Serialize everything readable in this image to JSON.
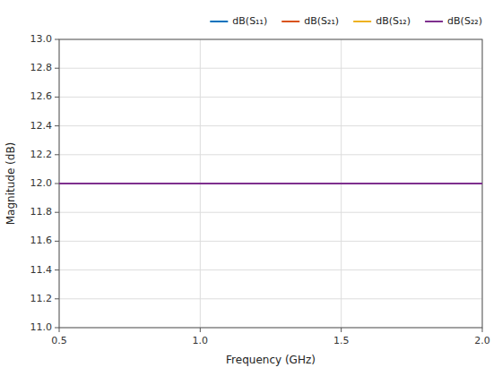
{
  "chart_data": {
    "type": "line",
    "xlabel": "Frequency (GHz)",
    "ylabel": "Magnitude (dB)",
    "x": [
      0.5,
      2.0
    ],
    "series": [
      {
        "name": "dB(S₁₁)",
        "color": "#0072BD",
        "values": [
          12.0,
          12.0
        ]
      },
      {
        "name": "dB(S₂₁)",
        "color": "#D95319",
        "values": [
          12.0,
          12.0
        ]
      },
      {
        "name": "dB(S₁₂)",
        "color": "#EDB120",
        "values": [
          12.0,
          12.0
        ]
      },
      {
        "name": "dB(S₂₂)",
        "color": "#7E2F8E",
        "values": [
          12.0,
          12.0
        ]
      }
    ],
    "xlim": [
      0.5,
      2.0
    ],
    "ylim": [
      11.0,
      13.0
    ],
    "xticks": [
      0.5,
      {
        "value": 1.0,
        "label": "1.0"
      },
      1.5,
      {
        "value": 2.0,
        "label": "2.0"
      }
    ],
    "yticks": [
      {
        "value": 11.0,
        "label": "11.0"
      },
      11.2,
      11.4,
      11.6,
      11.8,
      {
        "value": 12.0,
        "label": "12.0"
      },
      12.2,
      12.4,
      12.6,
      12.8,
      {
        "value": 13.0,
        "label": "13.0"
      }
    ],
    "grid": true,
    "legend": "upper right"
  }
}
